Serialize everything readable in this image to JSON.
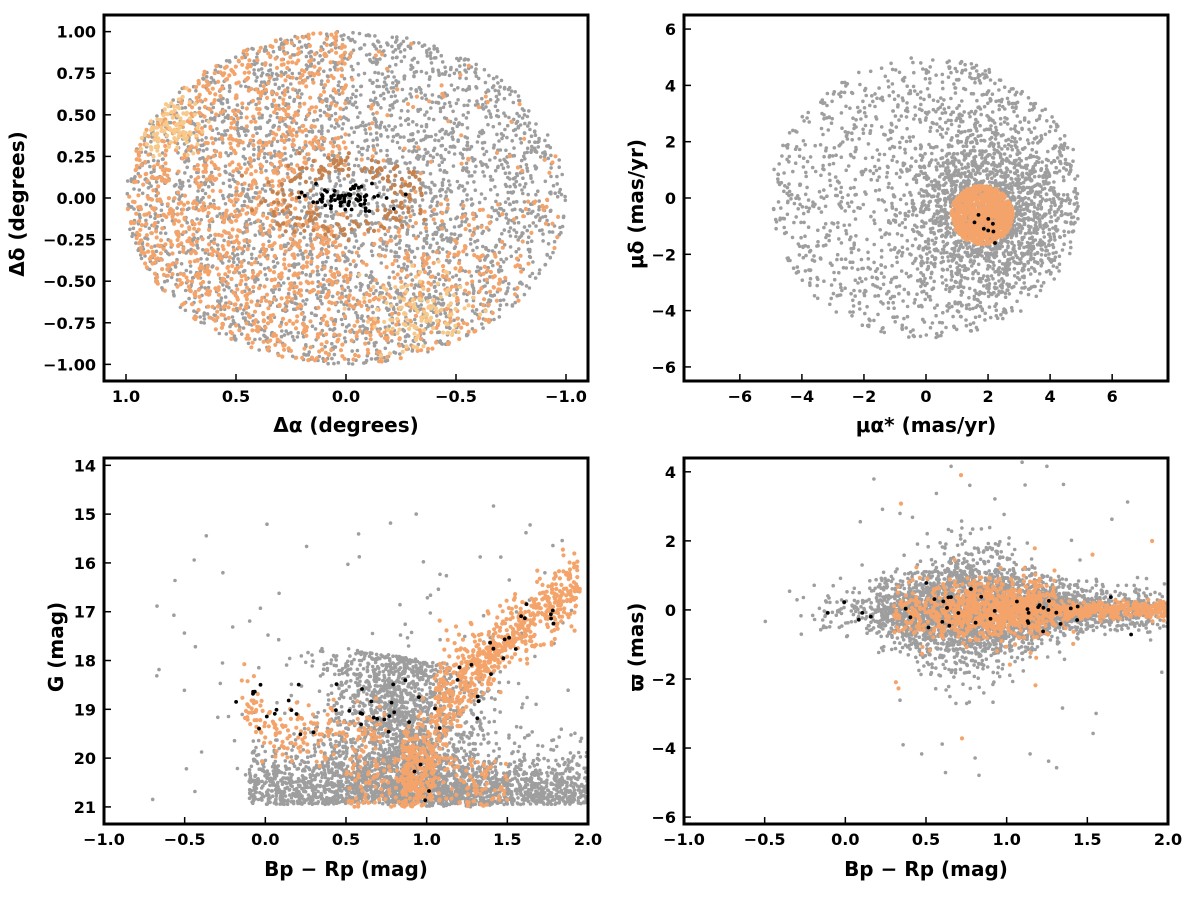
{
  "figure": {
    "panel_count": 4,
    "colors": {
      "field": "#9e9e9e",
      "members": "#f4a46a",
      "members_light": "#f7c98a",
      "members_dark": "#c48250",
      "core": "#000000"
    }
  },
  "chart_data": [
    {
      "type": "scatter",
      "xlabel": "Δα (degrees)",
      "ylabel": "Δδ (degrees)",
      "xlim": [
        1.1,
        -1.1
      ],
      "ylim": [
        -1.1,
        1.1
      ],
      "x_inverted": true,
      "xticks": [
        "1.0",
        "0.5",
        "0.0",
        "−0.5",
        "−1.0"
      ],
      "xtick_values": [
        1.0,
        0.5,
        0.0,
        -0.5,
        -1.0
      ],
      "yticks": [
        "−1.00",
        "−0.75",
        "−0.50",
        "−0.25",
        "0.00",
        "0.25",
        "0.50",
        "0.75",
        "1.00"
      ],
      "ytick_values": [
        -1.0,
        -0.75,
        -0.5,
        -0.25,
        0.0,
        0.25,
        0.5,
        0.75,
        1.0
      ],
      "grid": false,
      "series": [
        {
          "role": "field",
          "color": "#9e9e9e",
          "distribution": "uniform disk of radius 1.0 deg",
          "count": 3200
        },
        {
          "role": "members",
          "color": "#f4a46a",
          "distribution": "concentrated in eastern half and southwest",
          "count": 1600
        },
        {
          "role": "members-light",
          "color": "#f7c98a",
          "distribution": "clumps near (0.85, 0.45) and (-0.35, -0.7)",
          "count": 220
        },
        {
          "role": "members-dark",
          "color": "#c48250",
          "distribution": "ring around center",
          "count": 180
        },
        {
          "role": "core",
          "color": "#000000",
          "distribution": "center, |Δα|<0.2, |Δδ|<0.1",
          "count": 70
        }
      ]
    },
    {
      "type": "scatter",
      "xlabel": "μα* (mas/yr)",
      "ylabel": "μδ (mas/yr)",
      "xlim": [
        -7.8,
        7.8
      ],
      "ylim": [
        -6.5,
        6.5
      ],
      "xticks": [
        "−6",
        "−4",
        "−2",
        "0",
        "2",
        "4",
        "6"
      ],
      "xtick_values": [
        -6,
        -4,
        -2,
        0,
        2,
        4,
        6
      ],
      "yticks": [
        "−6",
        "−4",
        "−2",
        "0",
        "2",
        "4",
        "6"
      ],
      "ytick_values": [
        -6,
        -4,
        -2,
        0,
        2,
        4,
        6
      ],
      "grid": false,
      "series": [
        {
          "role": "field",
          "color": "#9e9e9e",
          "distribution": "disk radius ~5 centered (0,0) clipped at x<5, dense near (2,-0.5)",
          "count": 3000
        },
        {
          "role": "members",
          "color": "#f4a46a",
          "distribution": "clump centered (1.8,-0.6) radius ~1",
          "count": 900
        },
        {
          "role": "core",
          "color": "#000000",
          "distribution": "near (1.8,-1.0)",
          "count": 8
        }
      ]
    },
    {
      "type": "scatter",
      "xlabel": "Bp − Rp (mag)",
      "ylabel": "G (mag)",
      "xlim": [
        -1.0,
        2.0
      ],
      "ylim": [
        21.35,
        13.85
      ],
      "y_inverted": true,
      "xticks": [
        "−1.0",
        "−0.5",
        "0.0",
        "0.5",
        "1.0",
        "1.5",
        "2.0"
      ],
      "xtick_values": [
        -1.0,
        -0.5,
        0.0,
        0.5,
        1.0,
        1.5,
        2.0
      ],
      "yticks": [
        "14",
        "15",
        "16",
        "17",
        "18",
        "19",
        "20",
        "21"
      ],
      "ytick_values": [
        14,
        15,
        16,
        17,
        18,
        19,
        20,
        21
      ],
      "grid": false,
      "series": [
        {
          "role": "field",
          "color": "#9e9e9e",
          "distribution": "faint band G 20–21 across all colours plus main sequence around 1.0–1.2",
          "count": 3800
        },
        {
          "role": "members",
          "color": "#f4a46a",
          "distribution": "main sequence from (1.0,20.5) to (1.9,15.7), blue branch (0,19.5)",
          "count": 1300
        },
        {
          "role": "core",
          "color": "#000000",
          "distribution": "scattered along sequence",
          "count": 60
        }
      ]
    },
    {
      "type": "scatter",
      "xlabel": "Bp − Rp (mag)",
      "ylabel": "ϖ (mas)",
      "xlim": [
        -1.0,
        2.0
      ],
      "ylim": [
        -6.2,
        4.4
      ],
      "xticks": [
        "−1.0",
        "−0.5",
        "0.0",
        "0.5",
        "1.0",
        "1.5",
        "2.0"
      ],
      "xtick_values": [
        -1.0,
        -0.5,
        0.0,
        0.5,
        1.0,
        1.5,
        2.0
      ],
      "yticks": [
        "−6",
        "−4",
        "−2",
        "0",
        "2",
        "4"
      ],
      "ytick_values": [
        -6,
        -4,
        -2,
        0,
        2,
        4
      ],
      "grid": false,
      "series": [
        {
          "role": "field",
          "color": "#9e9e9e",
          "distribution": "band around ϖ≈0 widest at colour 0.6–1.0",
          "count": 3400
        },
        {
          "role": "members",
          "color": "#f4a46a",
          "distribution": "tight band around ϖ≈0, colour 0.3–2.0",
          "count": 1300
        },
        {
          "role": "core",
          "color": "#000000",
          "distribution": "scattered near ϖ≈0",
          "count": 40
        }
      ]
    }
  ]
}
